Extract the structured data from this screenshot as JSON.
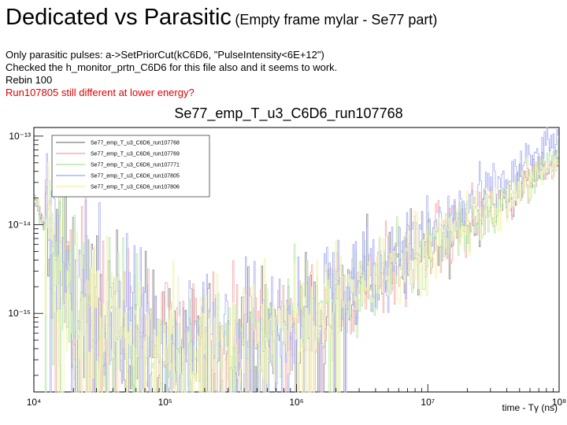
{
  "slide": {
    "title_main": "Dedicated vs Parasitic",
    "title_sub": "(Empty frame mylar - Se77 part)",
    "notes": [
      "Only parasitic pulses: a->SetPriorCut(kC6D6, \"PulseIntensity<6E+12\")",
      "Checked the h_monitor_prtn_C6D6 for this file also and it seems to work.",
      "Rebin 100"
    ],
    "note_red": "Run107805 still different at lower energy?"
  },
  "chart_data": {
    "type": "line",
    "title": "Se77_emp_T_u3_C6D6_run107768",
    "xlabel": "time - Tγ (ns)",
    "ylabel": "",
    "xscale": "log",
    "yscale": "log",
    "xlim": [
      10000,
      100000000
    ],
    "ylim": [
      1.3e-16,
      1.25e-13
    ],
    "x_ticks": [
      {
        "value": 10000,
        "label": "10⁴"
      },
      {
        "value": 100000,
        "label": "10⁵"
      },
      {
        "value": 1000000,
        "label": "10⁶"
      },
      {
        "value": 10000000,
        "label": "10⁷"
      },
      {
        "value": 100000000,
        "label": "10⁸"
      }
    ],
    "y_ticks": [
      {
        "value": 1e-15,
        "label": "10⁻¹⁵"
      },
      {
        "value": 1e-14,
        "label": "10⁻¹⁴"
      },
      {
        "value": 1e-13,
        "label": "10⁻¹³"
      }
    ],
    "legend_position": "top-left",
    "series": [
      {
        "name": "Se77_emp_T_u3_C6D6_run107768",
        "color": "#7f7f7f",
        "x": [
          10000,
          20000,
          50000,
          100000,
          200000,
          500000,
          1000000,
          2000000,
          5000000,
          10000000,
          20000000,
          50000000,
          100000000
        ],
        "y": [
          2e-14,
          1.5e-15,
          6e-16,
          4.5e-16,
          4.5e-16,
          6e-16,
          9e-16,
          1.5e-15,
          3e-15,
          5.5e-15,
          1e-14,
          2.5e-14,
          6e-14
        ]
      },
      {
        "name": "Se77_emp_T_u3_C6D6_run107769",
        "color": "#f2a0a0",
        "x": [
          10000,
          20000,
          50000,
          100000,
          200000,
          500000,
          1000000,
          2000000,
          5000000,
          10000000,
          20000000,
          50000000,
          100000000
        ],
        "y": [
          2e-14,
          1.5e-15,
          6e-16,
          4.5e-16,
          4.5e-16,
          6e-16,
          9e-16,
          1.5e-15,
          3e-15,
          5.5e-15,
          1e-14,
          2.5e-14,
          6e-14
        ]
      },
      {
        "name": "Se77_emp_T_u3_C6D6_run107771",
        "color": "#a8e39a",
        "x": [
          10000,
          20000,
          50000,
          100000,
          200000,
          500000,
          1000000,
          2000000,
          5000000,
          10000000,
          20000000,
          50000000,
          100000000
        ],
        "y": [
          2e-14,
          1.5e-15,
          6e-16,
          4.5e-16,
          4.5e-16,
          6e-16,
          9e-16,
          1.5e-15,
          3e-15,
          5.5e-15,
          1e-14,
          2.5e-14,
          6e-14
        ]
      },
      {
        "name": "Se77_emp_T_u3_C6D6_run107805",
        "color": "#9aa0f2",
        "x": [
          10000,
          20000,
          50000,
          100000,
          200000,
          500000,
          1000000,
          2000000,
          5000000,
          10000000,
          20000000,
          50000000,
          100000000
        ],
        "y": [
          2e-14,
          1.8e-15,
          7e-16,
          5e-16,
          5e-16,
          7e-16,
          1.1e-15,
          2e-15,
          4e-15,
          8e-15,
          1.6e-14,
          4e-14,
          1e-13
        ]
      },
      {
        "name": "Se77_emp_T_u3_C6D6_run107806",
        "color": "#eef2a0",
        "x": [
          10000,
          20000,
          50000,
          100000,
          200000,
          500000,
          1000000,
          2000000,
          5000000,
          10000000,
          20000000,
          50000000,
          100000000
        ],
        "y": [
          2e-14,
          1.5e-15,
          6e-16,
          4.5e-16,
          4.5e-16,
          6e-16,
          9e-16,
          1.5e-15,
          3e-15,
          5.5e-15,
          1e-14,
          2.5e-14,
          6e-14
        ]
      }
    ]
  }
}
